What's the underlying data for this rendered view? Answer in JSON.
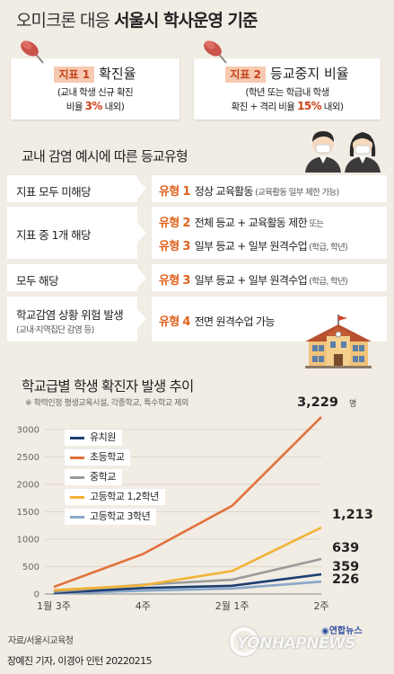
{
  "title": {
    "prefix": "오미크론 대응 ",
    "bold": "서울시 학사운영 기준"
  },
  "indicators": [
    {
      "tag": "지표 1",
      "name": "확진율",
      "desc_line1": "(교내 학생 신규 확진",
      "desc_pre": "비율 ",
      "highlight": "3%",
      "desc_post": " 내외)"
    },
    {
      "tag": "지표 2",
      "name": "등교중지 비율",
      "desc_line1": "(학년 또는 학급내 학생",
      "desc_pre": "확진 + 격리 비율 ",
      "highlight": "15%",
      "desc_post": " 내외)"
    }
  ],
  "section_title": "교내 감염 예시에 따른 등교유형",
  "rows": [
    {
      "label": "지표 모두 미해당",
      "lines": [
        {
          "type": "유형 1",
          "text": "정상 교육활동",
          "small": " (교육활동 일부 제한 가능)"
        }
      ]
    },
    {
      "label": "지표 중 1개 해당",
      "lines": [
        {
          "type": "유형 2",
          "text": "전체 등교 + 교육활동 제한",
          "small": "  또는"
        },
        {
          "type": "유형 3",
          "text": "일부 등교 + 일부 원격수업",
          "small": " (학급, 학년)"
        }
      ]
    },
    {
      "label": "모두 해당",
      "lines": [
        {
          "type": "유형 3",
          "text": "일부 등교 + 일부 원격수업",
          "small": " (학급, 학년)"
        }
      ]
    },
    {
      "label": "학교감염 상황 위험 발생",
      "label_sub": "(교내·지역집단 감염 등)",
      "lines": [
        {
          "type": "유형 4",
          "text": "전면 원격수업 가능",
          "small": ""
        }
      ]
    }
  ],
  "chart_title": "학교급별 학생 확진자 발생 추이",
  "chart_subtitle": "※ 학력인정 평생교육시설, 각종학교, 특수학교 제외",
  "chart_data": {
    "type": "line",
    "categories": [
      "1월 3주",
      "4주",
      "2월 1주",
      "2주"
    ],
    "ylim": [
      0,
      3000
    ],
    "yticks": [
      0,
      500,
      1000,
      1500,
      2000,
      2500,
      3000
    ],
    "series": [
      {
        "name": "유치원",
        "color": "#1b3f70",
        "values": [
          20,
          110,
          150,
          359
        ],
        "end_label": "359"
      },
      {
        "name": "초등학교",
        "color": "#e2713c",
        "values": [
          130,
          730,
          1610,
          3229
        ],
        "end_label": "3,229",
        "unit": "명"
      },
      {
        "name": "중학교",
        "color": "#9a9a9a",
        "values": [
          40,
          170,
          260,
          639
        ],
        "end_label": "639"
      },
      {
        "name": "고등학교 1,2학년",
        "color": "#f2b233",
        "values": [
          70,
          160,
          420,
          1213
        ],
        "end_label": "1,213"
      },
      {
        "name": "고등학교 3학년",
        "color": "#8aa7c8",
        "values": [
          10,
          60,
          100,
          226
        ],
        "end_label": "226"
      }
    ]
  },
  "footer": {
    "source": "자료/서울시교육청",
    "credit": "장예진 기자, 이경아 인턴  20220215",
    "brand": "연합뉴스",
    "watermark": "YONHAPNEWS"
  },
  "colors": {
    "background": "#f1ece4",
    "accent": "#e0621e",
    "highlight": "#d0421b"
  }
}
